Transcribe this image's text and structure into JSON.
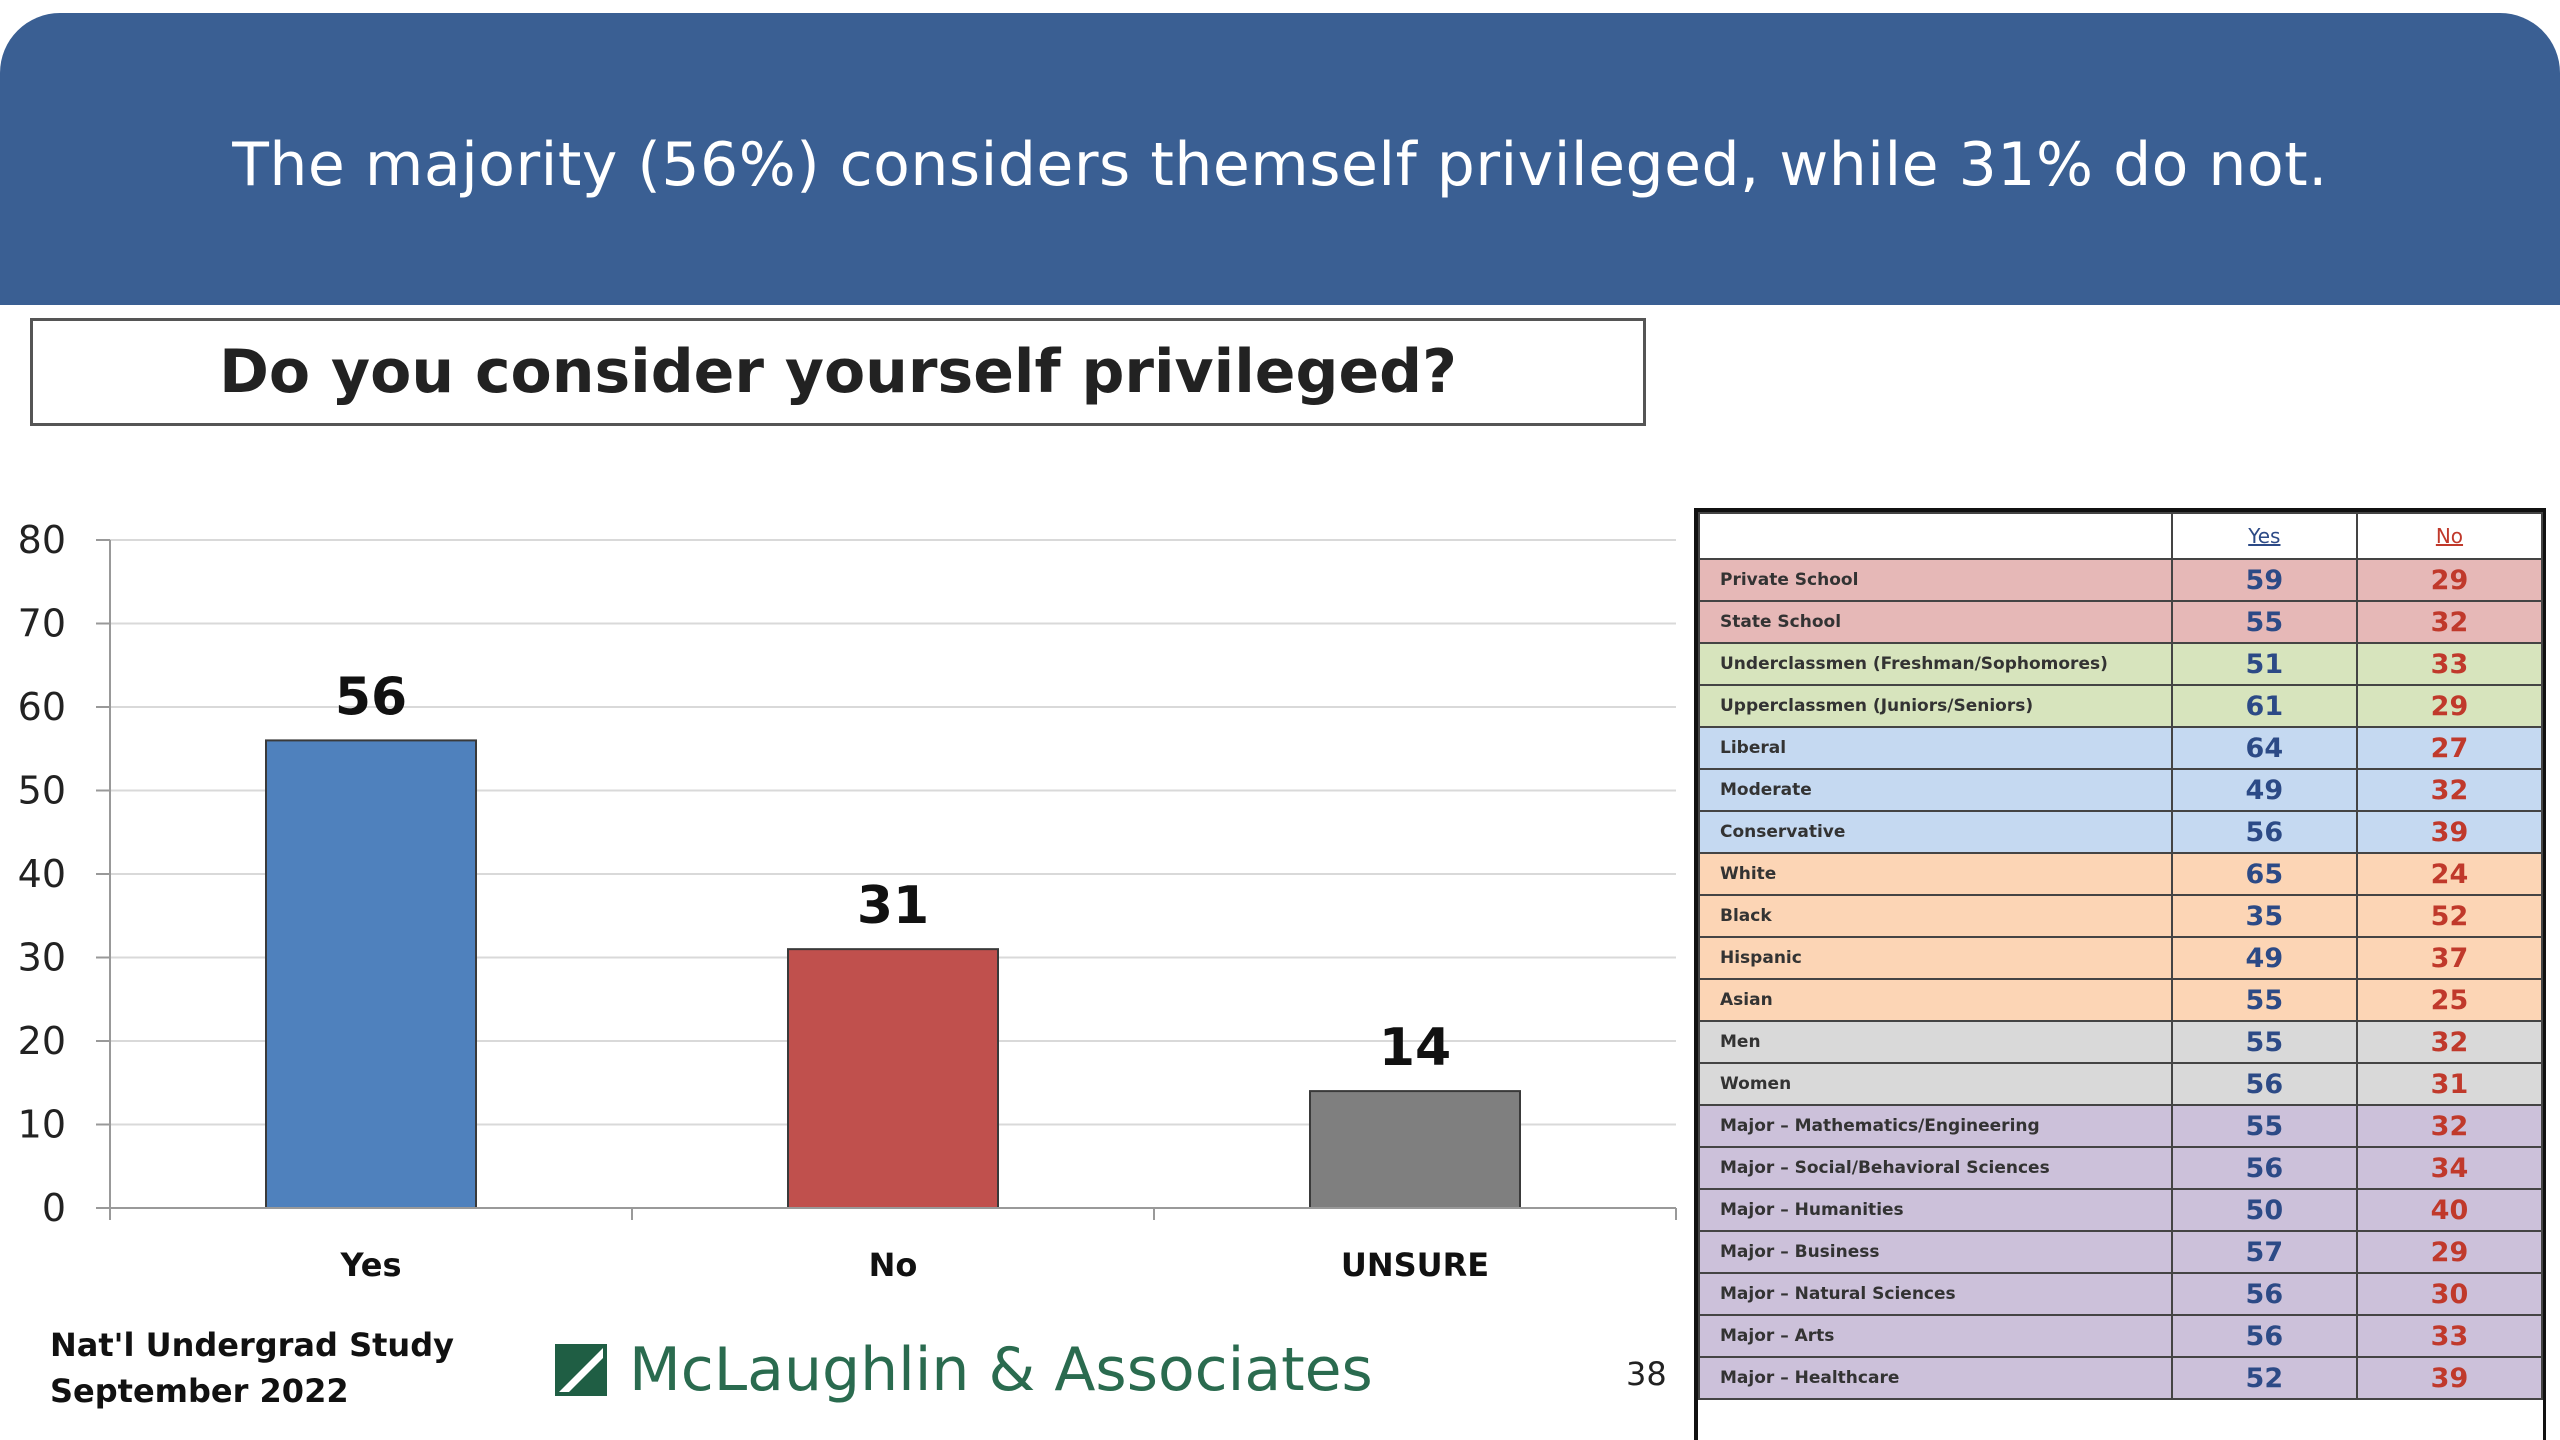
{
  "banner": {
    "title": "The majority (56%) considers themself privileged, while 31% do not."
  },
  "question": {
    "text": "Do you consider yourself privileged?"
  },
  "chart_data": {
    "type": "bar",
    "categories": [
      "Yes",
      "No",
      "UNSURE"
    ],
    "values": [
      56,
      31,
      14
    ],
    "colors": [
      "#4f81bd",
      "#c0504d",
      "#7f7f7f"
    ],
    "ylim": [
      0,
      80
    ],
    "yticks": [
      0,
      10,
      20,
      30,
      40,
      50,
      60,
      70,
      80
    ],
    "grid": true,
    "title": "",
    "xlabel": "",
    "ylabel": ""
  },
  "table": {
    "header_yes": "Yes",
    "header_no": "No",
    "rows": [
      {
        "label": "Private School",
        "yes": "59",
        "no": "29",
        "bg": "#e6b8b7"
      },
      {
        "label": "State School",
        "yes": "55",
        "no": "32",
        "bg": "#e6b8b7"
      },
      {
        "label": "Underclassmen (Freshman/Sophomores)",
        "yes": "51",
        "no": "33",
        "bg": "#d7e4bd"
      },
      {
        "label": "Upperclassmen (Juniors/Seniors)",
        "yes": "61",
        "no": "29",
        "bg": "#d7e4bd"
      },
      {
        "label": "Liberal",
        "yes": "64",
        "no": "27",
        "bg": "#c5d9f1"
      },
      {
        "label": "Moderate",
        "yes": "49",
        "no": "32",
        "bg": "#c5d9f1"
      },
      {
        "label": "Conservative",
        "yes": "56",
        "no": "39",
        "bg": "#c5d9f1"
      },
      {
        "label": "White",
        "yes": "65",
        "no": "24",
        "bg": "#fcd5b5"
      },
      {
        "label": "Black",
        "yes": "35",
        "no": "52",
        "bg": "#fcd5b5"
      },
      {
        "label": "Hispanic",
        "yes": "49",
        "no": "37",
        "bg": "#fcd5b5"
      },
      {
        "label": "Asian",
        "yes": "55",
        "no": "25",
        "bg": "#fcd5b5"
      },
      {
        "label": "Men",
        "yes": "55",
        "no": "32",
        "bg": "#d9d9d9"
      },
      {
        "label": "Women",
        "yes": "56",
        "no": "31",
        "bg": "#d9d9d9"
      },
      {
        "label": "Major – Mathematics/Engineering",
        "yes": "55",
        "no": "32",
        "bg": "#ccc1da"
      },
      {
        "label": "Major – Social/Behavioral Sciences",
        "yes": "56",
        "no": "34",
        "bg": "#ccc1da"
      },
      {
        "label": "Major – Humanities",
        "yes": "50",
        "no": "40",
        "bg": "#ccc1da"
      },
      {
        "label": "Major – Business",
        "yes": "57",
        "no": "29",
        "bg": "#ccc1da"
      },
      {
        "label": "Major – Natural Sciences",
        "yes": "56",
        "no": "30",
        "bg": "#ccc1da"
      },
      {
        "label": "Major – Arts",
        "yes": "56",
        "no": "33",
        "bg": "#ccc1da"
      },
      {
        "label": "Major – Healthcare",
        "yes": "52",
        "no": "39",
        "bg": "#ccc1da"
      }
    ]
  },
  "footer": {
    "study_line1": "Nat'l Undergrad Study",
    "study_line2": "September 2022",
    "logo_text": "McLaughlin & Associates",
    "page_number": "38"
  }
}
